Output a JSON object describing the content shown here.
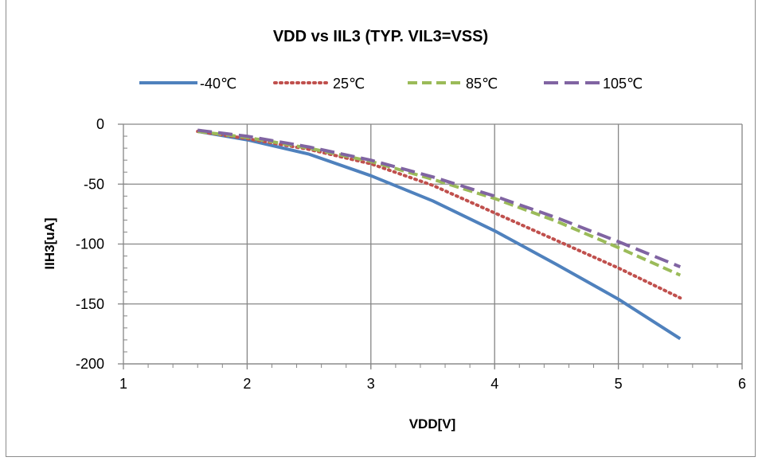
{
  "chart_data": {
    "type": "line",
    "title": "VDD vs IIL3 (TYP. VIL3=VSS)",
    "xlabel": "VDD[V]",
    "ylabel": "IIH3[uA]",
    "xlim": [
      1,
      6
    ],
    "ylim": [
      -200,
      0
    ],
    "x_ticks": [
      1,
      2,
      3,
      4,
      5,
      6
    ],
    "y_ticks": [
      0,
      -50,
      -100,
      -150,
      -200
    ],
    "x_tick_labels": [
      "1",
      "2",
      "3",
      "4",
      "5",
      "6"
    ],
    "y_tick_labels": [
      "0",
      "-50",
      "-100",
      "-150",
      "-200"
    ],
    "x_minor_step": 0.2,
    "y_minor_step": 10,
    "grid": "major",
    "legend_position": "top",
    "series": [
      {
        "name": "-40℃",
        "color": "#4f81bd",
        "dash": "solid",
        "points": [
          [
            1.6,
            -6
          ],
          [
            2.0,
            -13
          ],
          [
            2.5,
            -25
          ],
          [
            3.0,
            -43
          ],
          [
            3.5,
            -64
          ],
          [
            4.0,
            -89
          ],
          [
            4.5,
            -117
          ],
          [
            5.0,
            -146
          ],
          [
            5.5,
            -179
          ]
        ]
      },
      {
        "name": "25℃",
        "color": "#c0504d",
        "dash": "dot",
        "points": [
          [
            1.6,
            -6
          ],
          [
            2.0,
            -12
          ],
          [
            2.5,
            -21
          ],
          [
            3.0,
            -33
          ],
          [
            3.5,
            -51
          ],
          [
            4.0,
            -74
          ],
          [
            4.5,
            -97
          ],
          [
            5.0,
            -120
          ],
          [
            5.5,
            -145
          ]
        ]
      },
      {
        "name": "85℃",
        "color": "#9bbb59",
        "dash": "dash",
        "points": [
          [
            1.6,
            -6
          ],
          [
            2.0,
            -11
          ],
          [
            2.5,
            -20
          ],
          [
            3.0,
            -31
          ],
          [
            3.5,
            -46
          ],
          [
            4.0,
            -62
          ],
          [
            4.5,
            -81
          ],
          [
            5.0,
            -103
          ],
          [
            5.5,
            -126
          ]
        ]
      },
      {
        "name": "105℃",
        "color": "#8064a2",
        "dash": "longdash",
        "points": [
          [
            1.6,
            -5
          ],
          [
            2.0,
            -10
          ],
          [
            2.5,
            -19
          ],
          [
            3.0,
            -30
          ],
          [
            3.5,
            -44
          ],
          [
            4.0,
            -60
          ],
          [
            4.5,
            -78
          ],
          [
            5.0,
            -98
          ],
          [
            5.5,
            -119
          ]
        ]
      }
    ]
  }
}
